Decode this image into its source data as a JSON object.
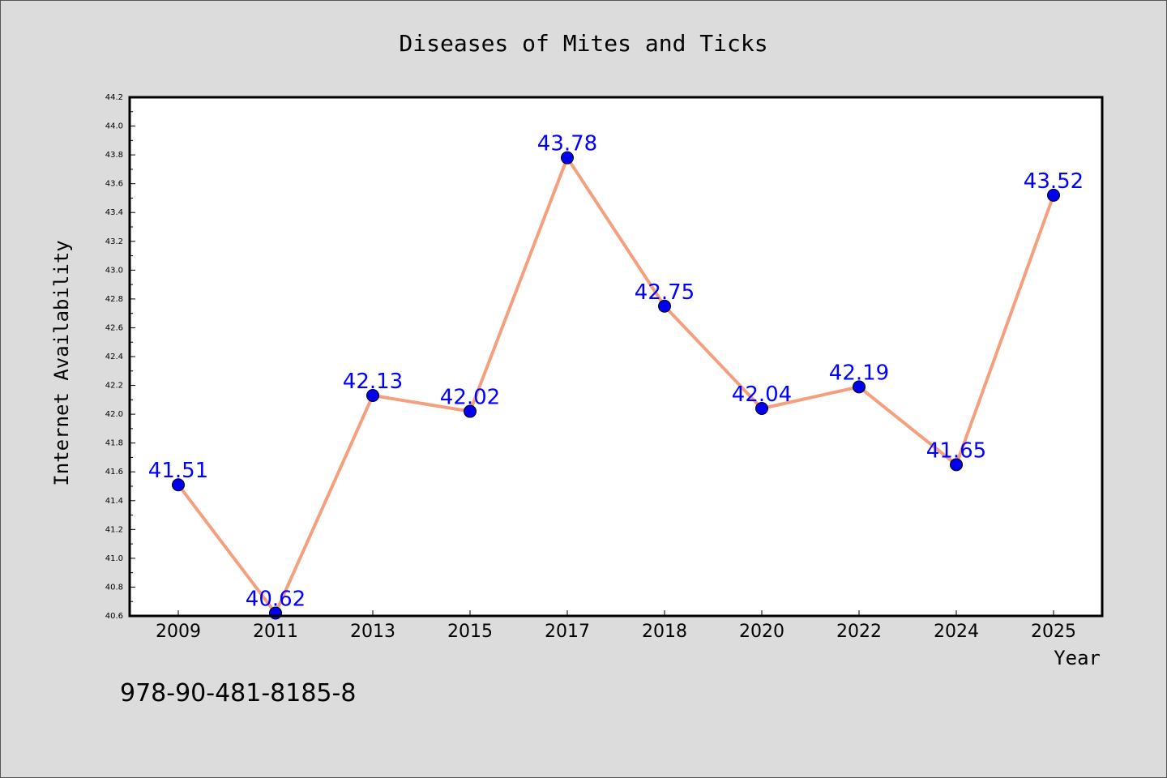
{
  "chart_data": {
    "type": "line",
    "title": "Diseases of Mites and Ticks",
    "xlabel": "Year",
    "ylabel": "Internet Availability",
    "categories": [
      "2009",
      "2011",
      "2013",
      "2015",
      "2017",
      "2018",
      "2020",
      "2022",
      "2024",
      "2025"
    ],
    "series": [
      {
        "values": [
          41.51,
          40.62,
          42.13,
          42.02,
          43.78,
          42.75,
          42.04,
          42.19,
          41.65,
          43.52
        ]
      }
    ],
    "data_labels": [
      "41.51",
      "40.62",
      "42.13",
      "42.02",
      "43.78",
      "42.75",
      "42.04",
      "42.19",
      "41.65",
      "43.52"
    ],
    "ylim": [
      40.6,
      44.2
    ],
    "yticks": [
      "40.6",
      "40.8",
      "41.0",
      "41.2",
      "41.4",
      "41.6",
      "41.8",
      "42.0",
      "42.2",
      "42.4",
      "42.6",
      "42.8",
      "43.0",
      "43.2",
      "43.4",
      "43.6",
      "43.8",
      "44.0",
      "44.2"
    ],
    "grid": false,
    "legend": "none",
    "colors": {
      "line": "#f4a07e",
      "marker": "#0000ee",
      "label": "#0000ff",
      "background": "#dcdcdc",
      "plot_bg": "#ffffff"
    }
  },
  "isbn": "978-90-481-8185-8"
}
